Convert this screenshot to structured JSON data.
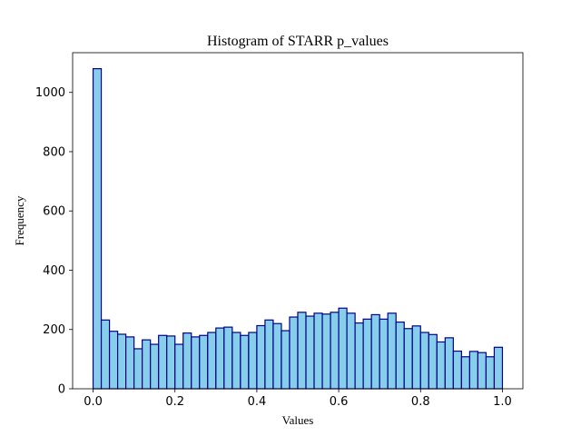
{
  "chart_data": {
    "type": "bar",
    "title": "Histogram of STARR p_values",
    "xlabel": "Values",
    "ylabel": "Frequency",
    "xlim": [
      -0.05,
      1.05
    ],
    "ylim": [
      0,
      1134
    ],
    "xticks": [
      "0.0",
      "0.2",
      "0.4",
      "0.6",
      "0.8",
      "1.0"
    ],
    "yticks": [
      "0",
      "200",
      "400",
      "600",
      "800",
      "1000"
    ],
    "bin_edges": [
      0.0,
      0.02,
      0.04,
      0.06,
      0.08,
      0.1,
      0.12,
      0.14,
      0.16,
      0.18,
      0.2,
      0.22,
      0.24,
      0.26,
      0.28,
      0.3,
      0.32,
      0.34,
      0.36,
      0.38,
      0.4,
      0.42,
      0.44,
      0.46,
      0.48,
      0.5,
      0.52,
      0.54,
      0.56,
      0.58,
      0.6,
      0.62,
      0.64,
      0.66,
      0.68,
      0.7,
      0.72,
      0.74,
      0.76,
      0.78,
      0.8,
      0.82,
      0.84,
      0.86,
      0.88,
      0.9,
      0.92,
      0.94,
      0.96,
      0.98,
      1.0
    ],
    "values": [
      1080,
      232,
      194,
      184,
      175,
      135,
      165,
      150,
      180,
      178,
      150,
      188,
      175,
      180,
      190,
      205,
      208,
      190,
      180,
      190,
      213,
      232,
      220,
      196,
      242,
      258,
      245,
      255,
      252,
      258,
      272,
      255,
      222,
      235,
      250,
      235,
      255,
      225,
      203,
      212,
      190,
      183,
      158,
      172,
      127,
      108,
      126,
      122,
      108,
      140
    ],
    "bar_color": "#87ceeb",
    "edge_color": "#00008b",
    "grid": false
  }
}
